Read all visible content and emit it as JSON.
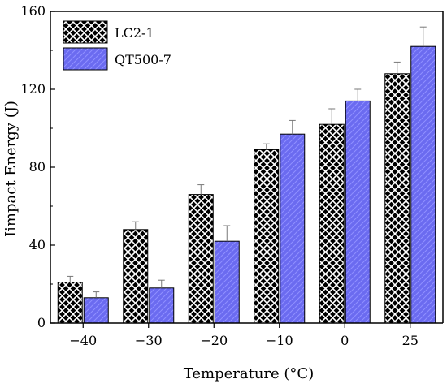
{
  "chart_data": {
    "type": "bar",
    "xlabel": "Temperature (°C)",
    "ylabel": "Iimpact Energy (J)",
    "categories": [
      "−40",
      "−30",
      "−20",
      "−10",
      "0",
      "25"
    ],
    "ylim": [
      0,
      160
    ],
    "yticks": [
      "0",
      "40",
      "80",
      "120",
      "160"
    ],
    "series": [
      {
        "name": "LC2-1",
        "pattern": "crosshatch",
        "color": "#000000",
        "values": [
          21,
          48,
          66,
          89,
          102,
          128
        ],
        "errors": [
          3,
          4,
          5,
          3,
          8,
          6
        ]
      },
      {
        "name": "QT500-7",
        "pattern": "diagonal",
        "color": "#6b6bf0",
        "values": [
          13,
          18,
          42,
          97,
          114,
          142
        ],
        "errors": [
          3,
          4,
          8,
          7,
          6,
          10
        ]
      }
    ],
    "legend_position": "top-left",
    "grid": false,
    "error_bars": true
  }
}
